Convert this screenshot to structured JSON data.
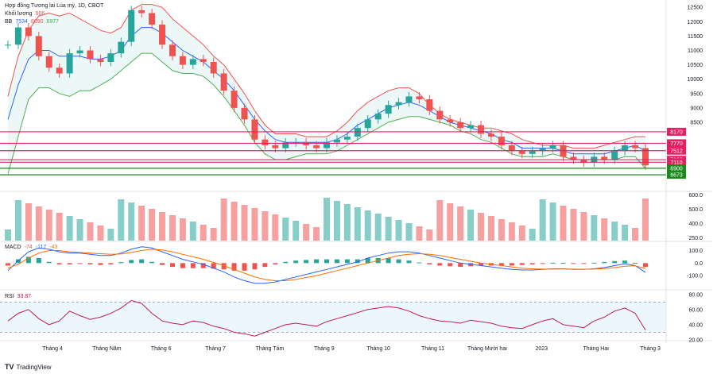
{
  "chart_title": "Hợp đồng Tương lai Lúa mỳ, 1D, CBOT",
  "legends": {
    "volume_label": "Khối lượng",
    "volume_value": "906",
    "bb_label": "BB",
    "bb_values": [
      "7534",
      "8090",
      "6977"
    ],
    "macd_label": "MACD",
    "macd_values": [
      "-74",
      "-117",
      "-43"
    ],
    "rsi_label": "RSI",
    "rsi_value": "33.87"
  },
  "watermark": "TradingView",
  "colors": {
    "up": "#26a69a",
    "down": "#ef5350",
    "bb_fill": "#e0f2f1",
    "bb_upper": "#ef5350",
    "bb_lower": "#4caf50",
    "bb_basis": "#2962ff",
    "rsi_line": "#c2185b",
    "rsi_band": "#e3f2fd",
    "level_red": "#e91e63",
    "level_green": "#1b8a1b",
    "macd_line": "#2962ff",
    "signal_line": "#ff6d00"
  },
  "chart_data": {
    "type": "line",
    "title": "Hợp đồng Tương lai Lúa mỳ, 1D, CBOT",
    "x_labels": [
      "Tháng 4",
      "Tháng Năm",
      "Tháng 6",
      "Tháng 7",
      "Tháng Tám",
      "Tháng 9",
      "Tháng 10",
      "Tháng 11",
      "Tháng Mười hai",
      "2023",
      "Tháng Hai",
      "Tháng 3"
    ],
    "price_axis": {
      "ticks": [
        12500,
        12000,
        11500,
        11000,
        10500,
        10000,
        9500,
        9000,
        8500
      ],
      "ylim": [
        6400,
        12700
      ],
      "levels": [
        {
          "value": 8170,
          "label": "8170",
          "color": "red"
        },
        {
          "value": 7770,
          "label": "7770",
          "color": "red"
        },
        {
          "value": 7512,
          "label": "7512",
          "color": "red"
        },
        {
          "value": 7196,
          "label": "7196",
          "color": "red"
        },
        {
          "value": 7110,
          "label": "7110",
          "color": "red"
        },
        {
          "value": 6900,
          "label": "6900",
          "color": "green"
        },
        {
          "value": 6673,
          "label": "6673",
          "color": "green"
        }
      ]
    },
    "volume_axis": {
      "ticks": [
        "600.0",
        "500.0",
        "400.0",
        "250.0"
      ]
    },
    "macd_axis": {
      "ticks": [
        "100.0",
        "0.0",
        "-100.0"
      ]
    },
    "rsi_axis": {
      "ticks": [
        "80.00",
        "60.00",
        "40.00",
        "20.00"
      ],
      "band": [
        30,
        70
      ]
    },
    "series": [
      {
        "name": "Price",
        "values": [
          11200,
          11800,
          11500,
          10800,
          10400,
          10200,
          10900,
          11000,
          10700,
          10600,
          10900,
          11300,
          12400,
          12300,
          11900,
          11200,
          10800,
          10500,
          10700,
          10600,
          10200,
          9600,
          9000,
          8600,
          7900,
          7700,
          7600,
          7800,
          7800,
          7700,
          7600,
          7800,
          7900,
          8000,
          8300,
          8600,
          8800,
          9100,
          9200,
          9400,
          9300,
          8900,
          8600,
          8500,
          8300,
          8400,
          8100,
          8000,
          7700,
          7500,
          7400,
          7500,
          7600,
          7700,
          7300,
          7200,
          7100,
          7300,
          7200,
          7500,
          7700,
          7600,
          7000
        ]
      },
      {
        "name": "BB upper",
        "values": [
          9400,
          10800,
          11700,
          12200,
          12300,
          12200,
          12300,
          12100,
          11900,
          11700,
          11600,
          11800,
          12400,
          12600,
          12600,
          12500,
          12100,
          11800,
          11500,
          11200,
          10800,
          10500,
          10000,
          9500,
          8900,
          8400,
          8100,
          8100,
          8100,
          8000,
          8000,
          8000,
          8200,
          8500,
          8900,
          9200,
          9400,
          9600,
          9700,
          9700,
          9500,
          9100,
          8800,
          8600,
          8500,
          8400,
          8300,
          8300,
          8200,
          8100,
          7900,
          7800,
          7700,
          7700,
          7700,
          7600,
          7600,
          7600,
          7700,
          7800,
          7900,
          8000,
          8000
        ]
      },
      {
        "name": "BB basis",
        "values": [
          8600,
          9800,
          10700,
          11000,
          11000,
          10800,
          10800,
          10800,
          10700,
          10700,
          10800,
          11000,
          11500,
          11800,
          11800,
          11600,
          11300,
          11000,
          10800,
          10600,
          10300,
          10000,
          9600,
          9100,
          8600,
          8200,
          7900,
          7800,
          7800,
          7800,
          7800,
          7800,
          7900,
          8100,
          8400,
          8600,
          8800,
          9000,
          9100,
          9200,
          9100,
          8900,
          8700,
          8500,
          8400,
          8300,
          8200,
          8100,
          7900,
          7800,
          7600,
          7600,
          7600,
          7600,
          7500,
          7400,
          7400,
          7400,
          7400,
          7500,
          7600,
          7700,
          7500
        ]
      },
      {
        "name": "BB lower",
        "values": [
          6700,
          8000,
          9300,
          9700,
          9700,
          9500,
          9400,
          9600,
          9600,
          9800,
          10000,
          10300,
          10600,
          10900,
          10900,
          10600,
          10300,
          10200,
          10200,
          10100,
          9800,
          9400,
          8900,
          8400,
          7800,
          7400,
          7200,
          7200,
          7300,
          7400,
          7400,
          7400,
          7500,
          7700,
          7900,
          8100,
          8300,
          8500,
          8600,
          8700,
          8700,
          8600,
          8500,
          8400,
          8200,
          8100,
          7900,
          7800,
          7600,
          7400,
          7300,
          7300,
          7300,
          7400,
          7300,
          7200,
          7200,
          7200,
          7200,
          7200,
          7300,
          7300,
          6900
        ]
      },
      {
        "name": "RSI",
        "values": [
          45,
          55,
          60,
          48,
          40,
          45,
          58,
          52,
          47,
          50,
          55,
          62,
          72,
          68,
          55,
          45,
          42,
          40,
          45,
          43,
          38,
          35,
          30,
          28,
          25,
          30,
          35,
          40,
          42,
          40,
          38,
          44,
          48,
          52,
          56,
          60,
          62,
          64,
          62,
          58,
          52,
          48,
          45,
          44,
          42,
          46,
          44,
          42,
          38,
          36,
          35,
          40,
          45,
          48,
          40,
          38,
          36,
          45,
          50,
          58,
          62,
          55,
          33
        ]
      },
      {
        "name": "MACD",
        "values": [
          -60,
          20,
          90,
          120,
          110,
          90,
          80,
          80,
          70,
          60,
          60,
          80,
          110,
          130,
          120,
          90,
          60,
          30,
          10,
          -10,
          -40,
          -70,
          -110,
          -140,
          -160,
          -160,
          -150,
          -130,
          -110,
          -90,
          -70,
          -50,
          -30,
          -10,
          10,
          40,
          60,
          80,
          90,
          90,
          80,
          60,
          40,
          20,
          0,
          -10,
          -20,
          -30,
          -40,
          -50,
          -55,
          -55,
          -50,
          -45,
          -45,
          -50,
          -50,
          -45,
          -35,
          -20,
          -5,
          -20,
          -74
        ]
      },
      {
        "name": "Signal",
        "values": [
          -40,
          -10,
          40,
          80,
          100,
          100,
          90,
          85,
          80,
          75,
          70,
          72,
          85,
          100,
          110,
          105,
          90,
          70,
          50,
          30,
          5,
          -20,
          -50,
          -80,
          -110,
          -130,
          -140,
          -140,
          -130,
          -115,
          -100,
          -80,
          -60,
          -40,
          -20,
          0,
          20,
          40,
          60,
          70,
          75,
          70,
          60,
          45,
          30,
          15,
          0,
          -10,
          -20,
          -30,
          -40,
          -45,
          -48,
          -48,
          -47,
          -48,
          -49,
          -48,
          -44,
          -36,
          -25,
          -22,
          -43
        ]
      }
    ]
  }
}
